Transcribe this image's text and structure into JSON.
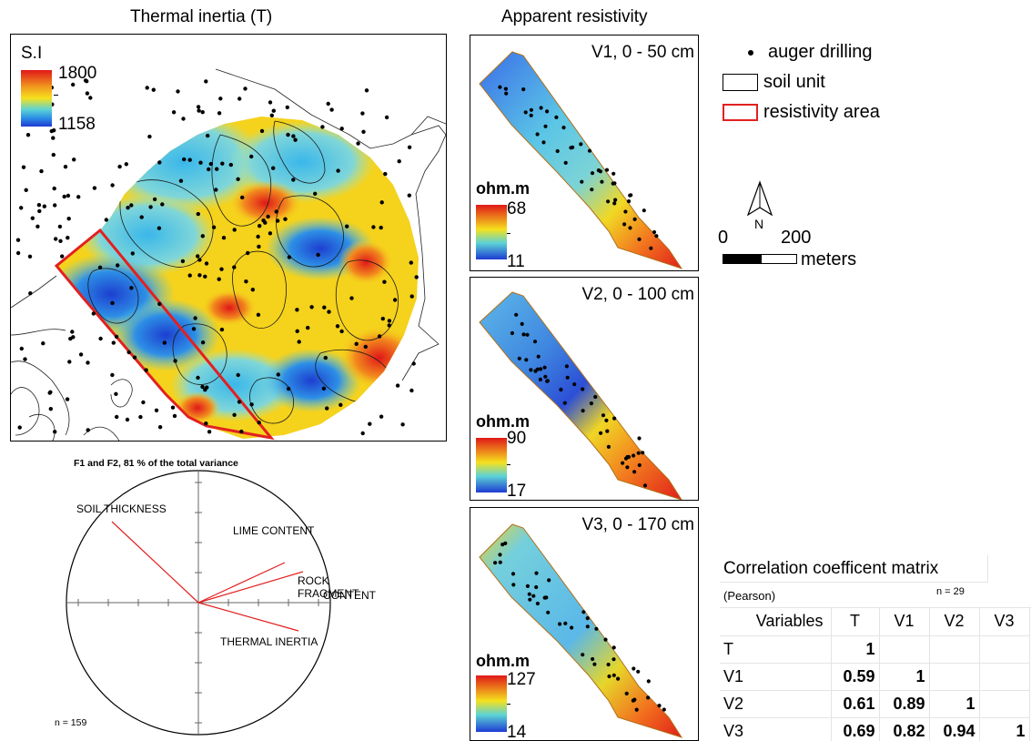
{
  "thermal": {
    "title": "Thermal inertia (T)",
    "unit": "S.I",
    "max": "1800",
    "min": "1158"
  },
  "resistivity": {
    "title": "Apparent resistivity",
    "panels": [
      {
        "label": "V1, 0 - 50 cm",
        "unit": "ohm.m",
        "max": "68",
        "min": "11"
      },
      {
        "label": "V2, 0 - 100 cm",
        "unit": "ohm.m",
        "max": "90",
        "min": "17"
      },
      {
        "label": "V3, 0 - 170 cm",
        "unit": "ohm.m",
        "max": "127",
        "min": "14"
      }
    ]
  },
  "legend": {
    "auger": "auger drilling",
    "soil": "soil unit",
    "resist": "resistivity area",
    "north": "N",
    "scale_zero": "0",
    "scale_max": "200",
    "scale_unit": "meters"
  },
  "pca": {
    "title": "F1 and F2, 81 % of the total variance",
    "n": "n = 159",
    "vectors": [
      {
        "label": "SOIL THICKNESS"
      },
      {
        "label": "LIME CONTENT"
      },
      {
        "label": "ROCK FRAGMENT"
      },
      {
        "label": "CONTENT"
      },
      {
        "label": "THERMAL INERTIA"
      }
    ]
  },
  "correlation": {
    "title": "Correlation coefficent matrix",
    "subtitle": "(Pearson)",
    "n": "n = 29",
    "headers": [
      "Variables",
      "T",
      "V1",
      "V2",
      "V3"
    ],
    "rows": [
      [
        "T",
        "1",
        "",
        "",
        ""
      ],
      [
        "V1",
        "0.59",
        "1",
        "",
        ""
      ],
      [
        "V2",
        "0.61",
        "0.89",
        "1",
        ""
      ],
      [
        "V3",
        "0.69",
        "0.82",
        "0.94",
        "1"
      ]
    ]
  },
  "colors": {
    "high": "#e8201a",
    "mid": "#f4e21c",
    "low": "#1b49d8",
    "resistivity_outline": "#e32020"
  }
}
